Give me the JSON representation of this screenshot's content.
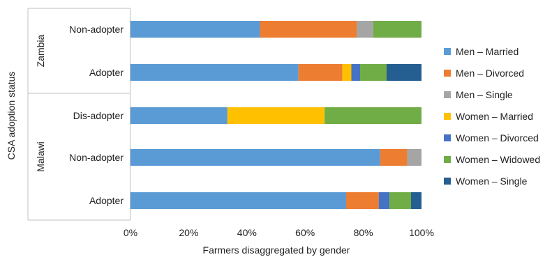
{
  "chart_data": {
    "type": "bar",
    "orientation": "horizontal",
    "stacked": true,
    "percent": true,
    "xlabel": "Farmers disaggregated by gender",
    "ylabel": "CSA adoption status",
    "xlim": [
      0,
      100
    ],
    "x_ticks": [
      "0%",
      "20%",
      "40%",
      "60%",
      "80%",
      "100%"
    ],
    "groups": [
      {
        "name": "Zambia",
        "categories": [
          "Non-adopter",
          "Adopter"
        ]
      },
      {
        "name": "Malawi",
        "categories": [
          "Dis-adopter",
          "Non-adopter",
          "Adopter"
        ]
      }
    ],
    "categories": [
      "Zambia – Non-adopter",
      "Zambia – Adopter",
      "Malawi – Dis-adopter",
      "Malawi – Non-adopter",
      "Malawi – Adopter"
    ],
    "category_labels": [
      "Non-adopter",
      "Adopter",
      "Dis-adopter",
      "Non-adopter",
      "Adopter"
    ],
    "series": [
      {
        "name": "Men – Married",
        "color": "#5b9bd5",
        "values": [
          44.5,
          57.7,
          33.3,
          85.8,
          74.1
        ]
      },
      {
        "name": "Men – Divorced",
        "color": "#ed7d31",
        "values": [
          33.3,
          15.1,
          0,
          9.3,
          11.2
        ]
      },
      {
        "name": "Men – Single",
        "color": "#a5a5a5",
        "values": [
          5.6,
          0,
          0,
          4.9,
          0
        ]
      },
      {
        "name": "Women – Married",
        "color": "#ffc000",
        "values": [
          0,
          3.1,
          33.4,
          0,
          0
        ]
      },
      {
        "name": "Women – Divorced",
        "color": "#4472c4",
        "values": [
          0,
          3.0,
          0,
          0,
          3.7
        ]
      },
      {
        "name": "Women – Widowed",
        "color": "#70ad47",
        "values": [
          16.6,
          9.1,
          33.3,
          0,
          7.4
        ]
      },
      {
        "name": "Women – Single",
        "color": "#255e91",
        "values": [
          0,
          12.0,
          0,
          0,
          3.6
        ]
      }
    ],
    "legend_position": "right",
    "grid": false
  }
}
